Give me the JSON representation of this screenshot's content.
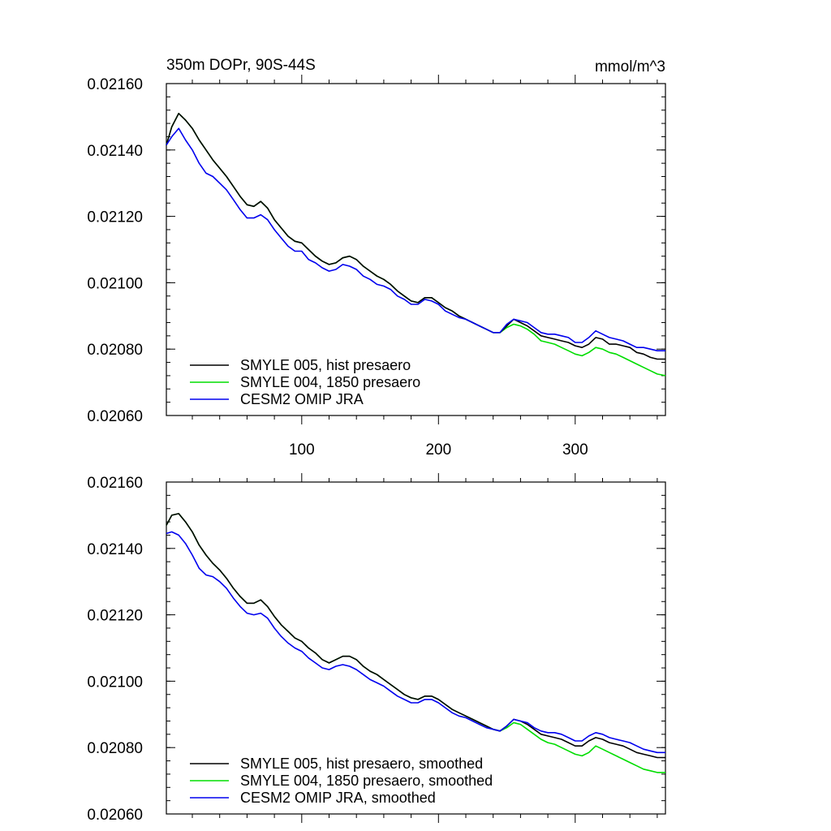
{
  "chart_data": [
    {
      "type": "line",
      "title": "350m DOPr, 90S-44S",
      "units": "mmol/m^3",
      "xlim": [
        1,
        366
      ],
      "ylim": [
        0.0206,
        0.0216
      ],
      "xticks": [
        100,
        200,
        300
      ],
      "xtick_labels": [
        "100",
        "200",
        "300"
      ],
      "yticks": [
        0.0206,
        0.0208,
        0.021,
        0.0212,
        0.0214,
        0.0216
      ],
      "ytick_labels": [
        "0.02060",
        "0.02080",
        "0.02100",
        "0.02120",
        "0.02140",
        "0.02160"
      ],
      "legend_position": "bottom-left",
      "series": [
        {
          "name": "SMYLE 005, hist presaero",
          "color": "#000000",
          "x": [
            1,
            5,
            10,
            15,
            20,
            25,
            30,
            35,
            40,
            45,
            50,
            55,
            60,
            65,
            70,
            75,
            80,
            85,
            90,
            95,
            100,
            105,
            110,
            115,
            120,
            125,
            130,
            135,
            140,
            145,
            150,
            155,
            160,
            165,
            170,
            175,
            180,
            185,
            190,
            195,
            200,
            205,
            210,
            215,
            220,
            225,
            230,
            235,
            240,
            245,
            250,
            255,
            260,
            265,
            270,
            275,
            280,
            285,
            290,
            295,
            300,
            305,
            310,
            315,
            320,
            325,
            330,
            335,
            340,
            345,
            350,
            355,
            360,
            366
          ],
          "y": [
            0.021415,
            0.02147,
            0.02151,
            0.02149,
            0.021465,
            0.02143,
            0.0214,
            0.02137,
            0.021345,
            0.02132,
            0.02129,
            0.02126,
            0.021235,
            0.02123,
            0.021245,
            0.021225,
            0.02119,
            0.021165,
            0.02114,
            0.021125,
            0.02112,
            0.0211,
            0.02108,
            0.021065,
            0.021055,
            0.02106,
            0.021075,
            0.02108,
            0.02107,
            0.02105,
            0.021035,
            0.02102,
            0.02101,
            0.020995,
            0.020975,
            0.02096,
            0.020945,
            0.02094,
            0.020955,
            0.020955,
            0.02094,
            0.020925,
            0.020915,
            0.0209,
            0.02089,
            0.02088,
            0.02087,
            0.02086,
            0.02085,
            0.02085,
            0.02087,
            0.02089,
            0.02088,
            0.02087,
            0.020855,
            0.02084,
            0.020835,
            0.02083,
            0.020825,
            0.02082,
            0.02081,
            0.020805,
            0.020815,
            0.020835,
            0.02083,
            0.020815,
            0.020815,
            0.02081,
            0.020805,
            0.02079,
            0.020785,
            0.020775,
            0.02077,
            0.02077
          ]
        },
        {
          "name": "SMYLE 004, 1850 presaero",
          "color": "#00dd00",
          "x": [
            1,
            5,
            10,
            15,
            20,
            25,
            30,
            35,
            40,
            45,
            50,
            55,
            60,
            65,
            70,
            75,
            80,
            85,
            90,
            95,
            100,
            105,
            110,
            115,
            120,
            125,
            130,
            135,
            140,
            145,
            150,
            155,
            160,
            165,
            170,
            175,
            180,
            185,
            190,
            195,
            200,
            205,
            210,
            215,
            220,
            225,
            230,
            235,
            240,
            245,
            250,
            255,
            260,
            265,
            270,
            275,
            280,
            285,
            290,
            295,
            300,
            305,
            310,
            315,
            320,
            325,
            330,
            335,
            340,
            345,
            350,
            355,
            360,
            366
          ],
          "y": [
            0.021415,
            0.02147,
            0.02151,
            0.02149,
            0.021465,
            0.02143,
            0.0214,
            0.02137,
            0.021345,
            0.02132,
            0.02129,
            0.02126,
            0.021235,
            0.02123,
            0.021245,
            0.021225,
            0.02119,
            0.021165,
            0.02114,
            0.021125,
            0.02112,
            0.0211,
            0.02108,
            0.021065,
            0.021055,
            0.02106,
            0.021075,
            0.02108,
            0.02107,
            0.02105,
            0.021035,
            0.02102,
            0.02101,
            0.020995,
            0.020975,
            0.02096,
            0.020945,
            0.02094,
            0.020955,
            0.020955,
            0.02094,
            0.020925,
            0.020915,
            0.0209,
            0.02089,
            0.02088,
            0.02087,
            0.02086,
            0.02085,
            0.02085,
            0.020865,
            0.020875,
            0.02087,
            0.02086,
            0.020845,
            0.020825,
            0.02082,
            0.020815,
            0.020805,
            0.020795,
            0.020785,
            0.02078,
            0.02079,
            0.020805,
            0.0208,
            0.02079,
            0.020785,
            0.020775,
            0.020765,
            0.020755,
            0.020745,
            0.020735,
            0.020725,
            0.02072
          ]
        },
        {
          "name": "CESM2 OMIP JRA",
          "color": "#0000ee",
          "x": [
            1,
            5,
            10,
            15,
            20,
            25,
            30,
            35,
            40,
            45,
            50,
            55,
            60,
            65,
            70,
            75,
            80,
            85,
            90,
            95,
            100,
            105,
            110,
            115,
            120,
            125,
            130,
            135,
            140,
            145,
            150,
            155,
            160,
            165,
            170,
            175,
            180,
            185,
            190,
            195,
            200,
            205,
            210,
            215,
            220,
            225,
            230,
            235,
            240,
            245,
            250,
            255,
            260,
            265,
            270,
            275,
            280,
            285,
            290,
            295,
            300,
            305,
            310,
            315,
            320,
            325,
            330,
            335,
            340,
            345,
            350,
            355,
            360,
            366
          ],
          "y": [
            0.021415,
            0.02144,
            0.021465,
            0.02143,
            0.0214,
            0.02136,
            0.02133,
            0.02132,
            0.0213,
            0.02128,
            0.02125,
            0.02122,
            0.021195,
            0.021195,
            0.021205,
            0.02119,
            0.02116,
            0.021135,
            0.02111,
            0.021095,
            0.021095,
            0.02107,
            0.02106,
            0.021045,
            0.021035,
            0.02104,
            0.021055,
            0.02105,
            0.02104,
            0.02102,
            0.02101,
            0.020995,
            0.02099,
            0.02098,
            0.02096,
            0.02095,
            0.020935,
            0.020935,
            0.02095,
            0.020945,
            0.020935,
            0.020915,
            0.020905,
            0.020895,
            0.02089,
            0.02088,
            0.02087,
            0.02086,
            0.02085,
            0.02085,
            0.020875,
            0.02089,
            0.020885,
            0.02088,
            0.020865,
            0.02085,
            0.020845,
            0.020845,
            0.02084,
            0.020835,
            0.02082,
            0.02082,
            0.020835,
            0.020855,
            0.020845,
            0.020835,
            0.02083,
            0.020825,
            0.020815,
            0.020805,
            0.020805,
            0.0208,
            0.020795,
            0.020795
          ]
        }
      ]
    },
    {
      "type": "line",
      "title": "",
      "xlim": [
        1,
        366
      ],
      "ylim": [
        0.0206,
        0.0216
      ],
      "xticks": [
        100,
        200,
        300
      ],
      "xtick_labels": [],
      "yticks": [
        0.0206,
        0.0208,
        0.021,
        0.0212,
        0.0214,
        0.0216
      ],
      "ytick_labels": [
        "0.02060",
        "0.02080",
        "0.02100",
        "0.02120",
        "0.02140",
        "0.02160"
      ],
      "legend_position": "bottom-left",
      "series": [
        {
          "name": "SMYLE 005, hist presaero, smoothed",
          "color": "#000000",
          "x": [
            1,
            5,
            10,
            15,
            20,
            25,
            30,
            35,
            40,
            45,
            50,
            55,
            60,
            65,
            70,
            75,
            80,
            85,
            90,
            95,
            100,
            105,
            110,
            115,
            120,
            125,
            130,
            135,
            140,
            145,
            150,
            155,
            160,
            165,
            170,
            175,
            180,
            185,
            190,
            195,
            200,
            205,
            210,
            215,
            220,
            225,
            230,
            235,
            240,
            245,
            250,
            255,
            260,
            265,
            270,
            275,
            280,
            285,
            290,
            295,
            300,
            305,
            310,
            315,
            320,
            325,
            330,
            335,
            340,
            345,
            350,
            355,
            360,
            366
          ],
          "y": [
            0.02147,
            0.0215,
            0.021505,
            0.02148,
            0.02145,
            0.02141,
            0.02138,
            0.021355,
            0.021335,
            0.02131,
            0.02128,
            0.021255,
            0.021235,
            0.021235,
            0.021245,
            0.021225,
            0.021195,
            0.02117,
            0.02115,
            0.02113,
            0.02112,
            0.0211,
            0.021085,
            0.021065,
            0.021055,
            0.021065,
            0.021075,
            0.021075,
            0.021065,
            0.021045,
            0.02103,
            0.02102,
            0.021005,
            0.02099,
            0.020975,
            0.02096,
            0.02095,
            0.020945,
            0.020955,
            0.020955,
            0.020945,
            0.02093,
            0.020915,
            0.020905,
            0.020895,
            0.020885,
            0.020875,
            0.020865,
            0.020855,
            0.02085,
            0.020865,
            0.020885,
            0.02088,
            0.02087,
            0.020855,
            0.02084,
            0.020835,
            0.02083,
            0.020825,
            0.020815,
            0.020805,
            0.020805,
            0.02082,
            0.02083,
            0.020825,
            0.020815,
            0.02081,
            0.020805,
            0.020795,
            0.020785,
            0.02078,
            0.020775,
            0.02077,
            0.02077
          ]
        },
        {
          "name": "SMYLE 004, 1850 presaero, smoothed",
          "color": "#00dd00",
          "x": [
            1,
            5,
            10,
            15,
            20,
            25,
            30,
            35,
            40,
            45,
            50,
            55,
            60,
            65,
            70,
            75,
            80,
            85,
            90,
            95,
            100,
            105,
            110,
            115,
            120,
            125,
            130,
            135,
            140,
            145,
            150,
            155,
            160,
            165,
            170,
            175,
            180,
            185,
            190,
            195,
            200,
            205,
            210,
            215,
            220,
            225,
            230,
            235,
            240,
            245,
            250,
            255,
            260,
            265,
            270,
            275,
            280,
            285,
            290,
            295,
            300,
            305,
            310,
            315,
            320,
            325,
            330,
            335,
            340,
            345,
            350,
            355,
            360,
            366
          ],
          "y": [
            0.02147,
            0.0215,
            0.021505,
            0.02148,
            0.02145,
            0.02141,
            0.02138,
            0.021355,
            0.021335,
            0.02131,
            0.02128,
            0.021255,
            0.021235,
            0.021235,
            0.021245,
            0.021225,
            0.021195,
            0.02117,
            0.02115,
            0.02113,
            0.02112,
            0.0211,
            0.021085,
            0.021065,
            0.021055,
            0.021065,
            0.021075,
            0.021075,
            0.021065,
            0.021045,
            0.02103,
            0.02102,
            0.021005,
            0.02099,
            0.020975,
            0.02096,
            0.02095,
            0.020945,
            0.020955,
            0.020955,
            0.020945,
            0.02093,
            0.020915,
            0.020905,
            0.020895,
            0.020885,
            0.020875,
            0.020865,
            0.020855,
            0.02085,
            0.02086,
            0.020875,
            0.02087,
            0.020855,
            0.02084,
            0.020825,
            0.020815,
            0.02081,
            0.0208,
            0.02079,
            0.02078,
            0.020775,
            0.020785,
            0.020805,
            0.020795,
            0.020785,
            0.020775,
            0.020765,
            0.020755,
            0.020745,
            0.020735,
            0.02073,
            0.020725,
            0.020725
          ]
        },
        {
          "name": "CESM2 OMIP JRA, smoothed",
          "color": "#0000ee",
          "x": [
            1,
            5,
            10,
            15,
            20,
            25,
            30,
            35,
            40,
            45,
            50,
            55,
            60,
            65,
            70,
            75,
            80,
            85,
            90,
            95,
            100,
            105,
            110,
            115,
            120,
            125,
            130,
            135,
            140,
            145,
            150,
            155,
            160,
            165,
            170,
            175,
            180,
            185,
            190,
            195,
            200,
            205,
            210,
            215,
            220,
            225,
            230,
            235,
            240,
            245,
            250,
            255,
            260,
            265,
            270,
            275,
            280,
            285,
            290,
            295,
            300,
            305,
            310,
            315,
            320,
            325,
            330,
            335,
            340,
            345,
            350,
            355,
            360,
            366
          ],
          "y": [
            0.021445,
            0.02145,
            0.02144,
            0.021415,
            0.02138,
            0.02134,
            0.02132,
            0.021315,
            0.0213,
            0.02128,
            0.02125,
            0.021225,
            0.021205,
            0.0212,
            0.021205,
            0.02119,
            0.02116,
            0.021135,
            0.021115,
            0.0211,
            0.02109,
            0.02107,
            0.021055,
            0.02104,
            0.021035,
            0.021045,
            0.02105,
            0.021045,
            0.021035,
            0.02102,
            0.021005,
            0.020995,
            0.020985,
            0.02097,
            0.020955,
            0.020945,
            0.020935,
            0.020935,
            0.020945,
            0.020945,
            0.020935,
            0.02092,
            0.020905,
            0.020895,
            0.02089,
            0.02088,
            0.02087,
            0.02086,
            0.020855,
            0.02085,
            0.020865,
            0.020885,
            0.02088,
            0.020875,
            0.02086,
            0.02085,
            0.020845,
            0.020845,
            0.02084,
            0.02083,
            0.02082,
            0.02082,
            0.020835,
            0.020845,
            0.02084,
            0.02083,
            0.020825,
            0.02082,
            0.020815,
            0.020805,
            0.020795,
            0.02079,
            0.020785,
            0.020785
          ]
        }
      ]
    }
  ]
}
